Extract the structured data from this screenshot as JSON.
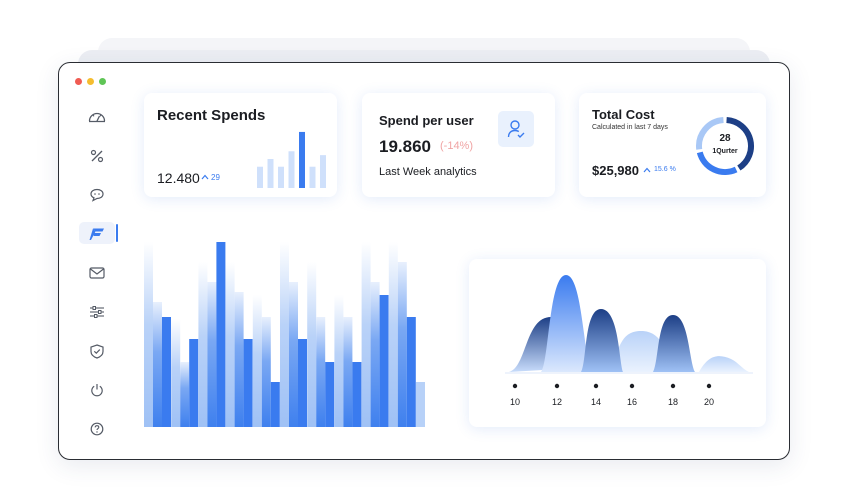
{
  "colors": {
    "accent": "#3a7bef",
    "accent_light": "#cfe0fb",
    "negative": "#f0a4a4",
    "dark_navy": "#1d3f86"
  },
  "window": {
    "traffic_lights": [
      "#f05b52",
      "#f5bd2f",
      "#5fc556"
    ]
  },
  "sidebar": {
    "items": [
      {
        "icon": "gauge-icon",
        "active": false
      },
      {
        "icon": "percent-icon",
        "active": false
      },
      {
        "icon": "chat-icon",
        "active": false
      },
      {
        "icon": "brand-logo-icon",
        "active": true
      },
      {
        "icon": "mail-icon",
        "active": false
      },
      {
        "icon": "sliders-icon",
        "active": false
      },
      {
        "icon": "shield-check-icon",
        "active": false
      },
      {
        "icon": "power-icon",
        "active": false
      },
      {
        "icon": "help-icon",
        "active": false
      }
    ]
  },
  "recent_spends": {
    "title": "Recent Spends",
    "value": "12.480",
    "change": "29",
    "change_icon": "arrow-up-icon",
    "chart_data": {
      "type": "bar",
      "values": [
        22,
        30,
        22,
        38,
        58,
        22,
        34
      ],
      "highlight_index": 4,
      "ylim": [
        0,
        60
      ]
    }
  },
  "spend_per_user": {
    "title": "Spend per user",
    "value": "19.860",
    "change": "(-14%)",
    "subtitle": "Last Week analytics",
    "icon": "user-check-icon"
  },
  "total_cost": {
    "title": "Total Cost",
    "subtitle": "Calculated in last 7 days",
    "value": "$25,980",
    "change": "15.6 %",
    "change_icon": "arrow-up-icon",
    "donut_value": "28",
    "donut_label": "1Qurter",
    "chart_data": {
      "type": "pie",
      "slices": [
        {
          "value": 42,
          "color": "#1d3f86"
        },
        {
          "value": 30,
          "color": "#3a7bef"
        },
        {
          "value": 28,
          "color": "#a9c8f6"
        }
      ]
    }
  },
  "bar_chart": {
    "chart_data": {
      "type": "bar",
      "series_pattern": [
        "light",
        "mid",
        "strong"
      ],
      "groups": [
        [
          185,
          125,
          110
        ],
        [
          108,
          65,
          88
        ],
        [
          165,
          145,
          185
        ],
        [
          165,
          135,
          88
        ],
        [
          132,
          110,
          45
        ],
        [
          185,
          145,
          88
        ],
        [
          165,
          110,
          65
        ],
        [
          132,
          110,
          65
        ],
        [
          185,
          145,
          132
        ],
        [
          185,
          165,
          110
        ],
        [
          45,
          0,
          0
        ]
      ],
      "ylim": [
        0,
        190
      ]
    }
  },
  "wave_chart": {
    "chart_data": {
      "type": "area",
      "x_ticks": [
        "10",
        "12",
        "14",
        "16",
        "18",
        "20"
      ]
    }
  }
}
